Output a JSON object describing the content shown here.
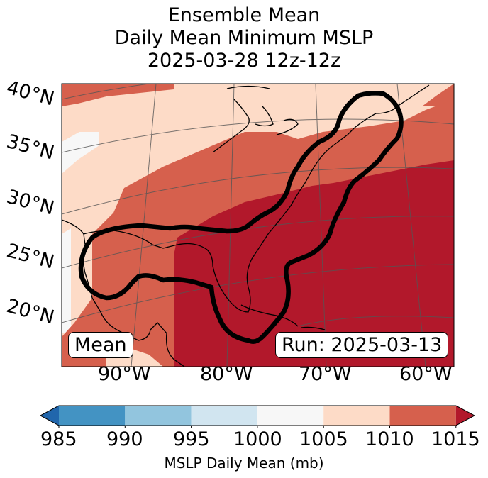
{
  "title": {
    "line1": "Ensemble Mean",
    "line2": "Daily Mean Minimum MSLP",
    "line3": "2025-03-28 12z-12z"
  },
  "lat_labels": [
    "40°N",
    "35°N",
    "30°N",
    "25°N",
    "20°N"
  ],
  "lon_labels": [
    "90°W",
    "80°W",
    "70°W",
    "60°W"
  ],
  "labels": {
    "mean": "Mean",
    "run": "Run: 2025-03-13"
  },
  "colorbar": {
    "ticks": [
      "985",
      "990",
      "995",
      "1000",
      "1005",
      "1010",
      "1015"
    ],
    "label": "MSLP Daily Mean (mb)",
    "colors": {
      "below_985": "#2166ac",
      "985_990": "#4393c3",
      "990_995": "#92c5de",
      "995_1000": "#d1e5f0",
      "1000_1005": "#f7f7f7",
      "1005_1010": "#fddbc7",
      "1010_1015": "#d6604d",
      "above_1015": "#b2182b"
    }
  }
}
